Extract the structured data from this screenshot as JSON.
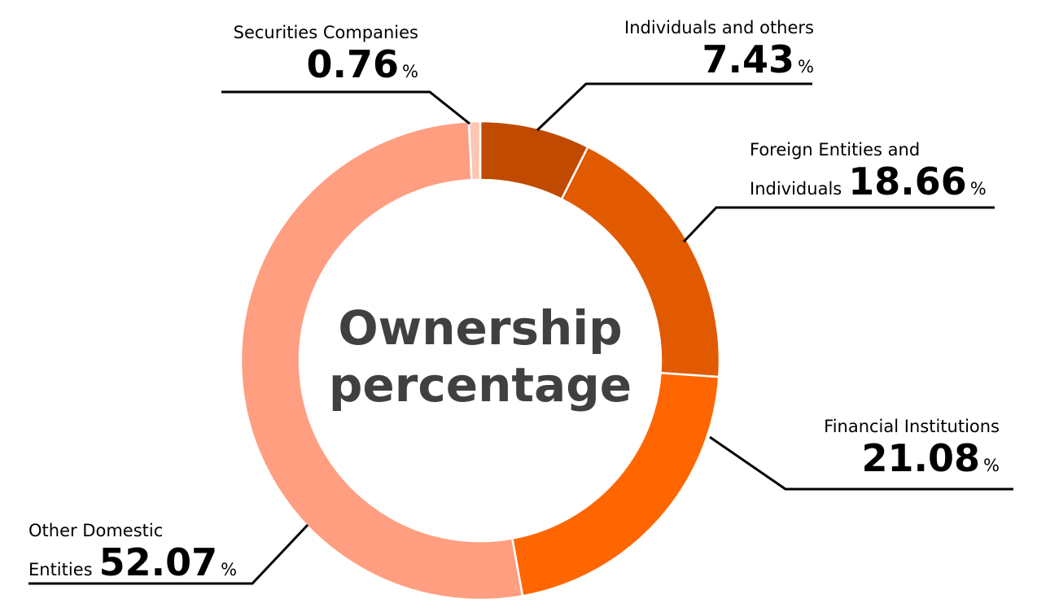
{
  "chart_data": {
    "type": "donut",
    "title": "Ownership percentage",
    "categories": [
      "Individuals and others",
      "Foreign Entities and\nIndividuals",
      "Financial Institutions",
      "Other Domestic\nEntities",
      "Securities Companies"
    ],
    "values": [
      7.43,
      18.66,
      21.08,
      52.07,
      0.76
    ],
    "unit": "%",
    "colors": [
      "#c04a00",
      "#e25a00",
      "#ff6600",
      "#ff9e80",
      "#ffc6b4"
    ]
  }
}
